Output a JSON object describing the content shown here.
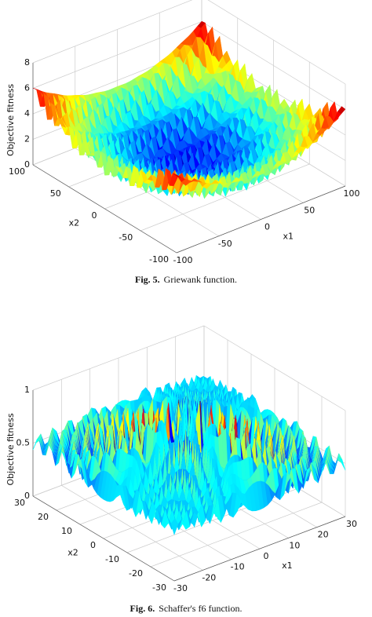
{
  "figures": [
    {
      "zlabel": "Objective fitness",
      "xlabel": "x1",
      "ylabel": "x2",
      "zticks": [
        0,
        2,
        4,
        6,
        8
      ],
      "xticks": [
        -100,
        -50,
        0,
        50,
        100
      ],
      "yticks": [
        -100,
        -50,
        0,
        50,
        100
      ],
      "caption_label": "Fig. 5.",
      "caption": "Griewank function."
    },
    {
      "zlabel": "Objective fitness",
      "xlabel": "x1",
      "ylabel": "x2",
      "zticks": [
        0,
        0.5,
        1
      ],
      "xticks": [
        -30,
        -20,
        -10,
        0,
        10,
        20,
        30
      ],
      "yticks": [
        -30,
        -20,
        -10,
        0,
        10,
        20,
        30
      ],
      "caption_label": "Fig. 6.",
      "caption": "Schaffer's f6 function."
    }
  ]
}
